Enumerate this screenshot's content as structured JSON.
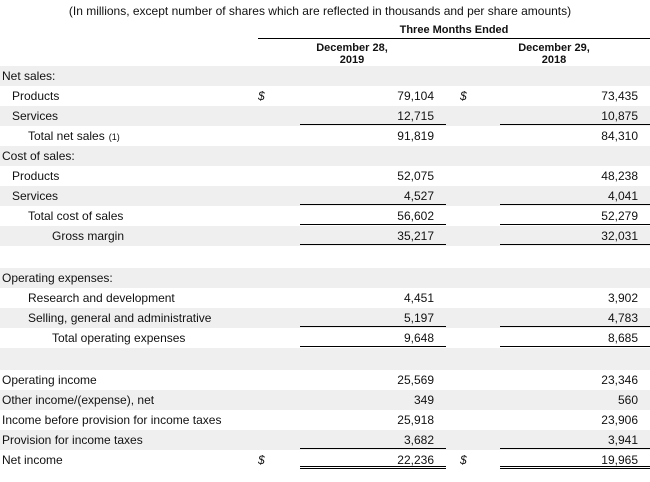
{
  "header": {
    "note": "(In millions, except number of shares which are reflected in thousands and per share amounts)",
    "period": "Three Months Ended",
    "columns": [
      [
        "December 28,",
        "2019"
      ],
      [
        "December 29,",
        "2018"
      ]
    ]
  },
  "rows": [
    {
      "label": "Net sales:",
      "indent": 0
    },
    {
      "label": "Products",
      "indent": 1,
      "currency": [
        "$",
        "$"
      ],
      "values": [
        "79,104",
        "73,435"
      ]
    },
    {
      "label": "Services",
      "indent": 1,
      "values": [
        "12,715",
        "10,875"
      ]
    },
    {
      "label": "Total net sales",
      "footnote": "(1)",
      "indent": 2,
      "values": [
        "91,819",
        "84,310"
      ]
    },
    {
      "label": "Cost of sales:",
      "indent": 0
    },
    {
      "label": "Products",
      "indent": 1,
      "values": [
        "52,075",
        "48,238"
      ]
    },
    {
      "label": "Services",
      "indent": 1,
      "values": [
        "4,527",
        "4,041"
      ]
    },
    {
      "label": "Total cost of sales",
      "indent": 2,
      "values": [
        "56,602",
        "52,279"
      ]
    },
    {
      "label": "Gross margin",
      "indent": 3,
      "values": [
        "35,217",
        "32,031"
      ]
    },
    null,
    {
      "label": "Operating expenses:",
      "indent": 0
    },
    {
      "label": "Research and development",
      "indent": 2,
      "values": [
        "4,451",
        "3,902"
      ]
    },
    {
      "label": "Selling, general and administrative",
      "indent": 2,
      "values": [
        "5,197",
        "4,783"
      ]
    },
    {
      "label": "Total operating expenses",
      "indent": 3,
      "values": [
        "9,648",
        "8,685"
      ]
    },
    null,
    {
      "label": "Operating income",
      "indent": 0,
      "values": [
        "25,569",
        "23,346"
      ]
    },
    {
      "label": "Other income/(expense), net",
      "indent": 0,
      "values": [
        "349",
        "560"
      ]
    },
    {
      "label": "Income before provision for income taxes",
      "indent": 0,
      "values": [
        "25,918",
        "23,906"
      ]
    },
    {
      "label": "Provision for income taxes",
      "indent": 0,
      "values": [
        "3,682",
        "3,941"
      ]
    },
    {
      "label": "Net income",
      "indent": 0,
      "currency": [
        "$",
        "$"
      ],
      "values": [
        "22,236",
        "19,965"
      ]
    }
  ]
}
